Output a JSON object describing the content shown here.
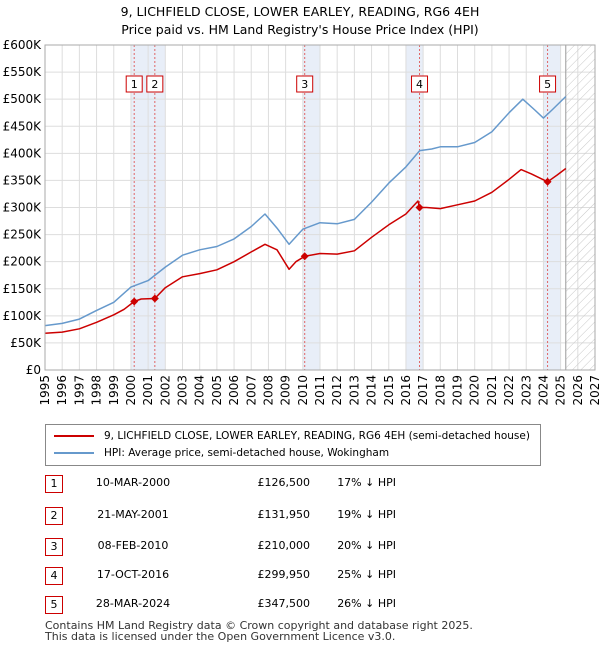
{
  "chart_data": {
    "type": "line",
    "title": "9, LICHFIELD CLOSE, LOWER EARLEY, READING, RG6 4EH",
    "subtitle": "Price paid vs. HM Land Registry's House Price Index (HPI)",
    "x_range": [
      1995,
      2027
    ],
    "ylim": [
      0,
      600000
    ],
    "y_ticks": [
      {
        "value": 0,
        "label": "£0"
      },
      {
        "value": 50000,
        "label": "£50K"
      },
      {
        "value": 100000,
        "label": "£100K"
      },
      {
        "value": 150000,
        "label": "£150K"
      },
      {
        "value": 200000,
        "label": "£200K"
      },
      {
        "value": 250000,
        "label": "£250K"
      },
      {
        "value": 300000,
        "label": "£300K"
      },
      {
        "value": 350000,
        "label": "£350K"
      },
      {
        "value": 400000,
        "label": "£400K"
      },
      {
        "value": 450000,
        "label": "£450K"
      },
      {
        "value": 500000,
        "label": "£500K"
      },
      {
        "value": 550000,
        "label": "£550K"
      },
      {
        "value": 600000,
        "label": "£600K"
      }
    ],
    "x_ticks": [
      "1995",
      "1996",
      "1997",
      "1998",
      "1999",
      "2000",
      "2001",
      "2002",
      "2003",
      "2004",
      "2005",
      "2006",
      "2007",
      "2008",
      "2009",
      "2010",
      "2011",
      "2012",
      "2013",
      "2014",
      "2015",
      "2016",
      "2017",
      "2018",
      "2019",
      "2020",
      "2021",
      "2022",
      "2023",
      "2024",
      "2025",
      "2026",
      "2027"
    ],
    "forecast_start": 2025.3,
    "series": [
      {
        "name": "9, LICHFIELD CLOSE, LOWER EARLEY, READING, RG6 4EH (semi-detached house)",
        "color": "#cc0000",
        "x": [
          1995,
          1996,
          1997,
          1998,
          1999,
          1999.6,
          2000.19,
          2000.6,
          2001.39,
          2002,
          2003,
          2004,
          2005,
          2006,
          2007,
          2007.8,
          2008.5,
          2009.2,
          2009.6,
          2010.11,
          2011,
          2012,
          2013,
          2014,
          2015,
          2016,
          2016.7,
          2016.79,
          2017.2,
          2018,
          2019,
          2020,
          2021,
          2022,
          2022.7,
          2023.3,
          2024.24,
          2024.8,
          2025.3
        ],
        "values": [
          68000,
          70000,
          76000,
          88000,
          102000,
          112000,
          126500,
          131000,
          131950,
          152000,
          172000,
          178000,
          185000,
          200000,
          218000,
          232000,
          222000,
          186000,
          200000,
          210000,
          215000,
          214000,
          220000,
          245000,
          268000,
          288000,
          312000,
          299950,
          300000,
          298000,
          305000,
          312000,
          328000,
          352000,
          370000,
          362000,
          347500,
          360000,
          372000
        ]
      },
      {
        "name": "HPI: Average price, semi-detached house, Wokingham",
        "color": "#6699cc",
        "x": [
          1995,
          1996,
          1997,
          1998,
          1999,
          2000,
          2001,
          2002,
          2003,
          2004,
          2005,
          2006,
          2007,
          2007.8,
          2008.5,
          2009.2,
          2010,
          2011,
          2012,
          2013,
          2014,
          2015,
          2016,
          2016.8,
          2017.5,
          2018,
          2019,
          2020,
          2021,
          2022,
          2022.8,
          2023.5,
          2024,
          2024.5,
          2025.3
        ],
        "values": [
          82000,
          86000,
          94000,
          110000,
          125000,
          153000,
          165000,
          190000,
          212000,
          222000,
          228000,
          242000,
          265000,
          288000,
          262000,
          232000,
          260000,
          272000,
          270000,
          278000,
          310000,
          345000,
          375000,
          405000,
          408000,
          412000,
          412000,
          420000,
          440000,
          475000,
          500000,
          480000,
          465000,
          480000,
          505000
        ]
      }
    ],
    "sales": [
      {
        "n": "1",
        "x": 2000.19,
        "value": 126500
      },
      {
        "n": "2",
        "x": 2001.39,
        "value": 131950
      },
      {
        "n": "3",
        "x": 2010.11,
        "value": 210000
      },
      {
        "n": "4",
        "x": 2016.79,
        "value": 299950
      },
      {
        "n": "5",
        "x": 2024.24,
        "value": 347500
      }
    ]
  },
  "legend": {
    "property": "9, LICHFIELD CLOSE, LOWER EARLEY, READING, RG6 4EH (semi-detached house)",
    "hpi": "HPI: Average price, semi-detached house, Wokingham"
  },
  "sales_table": [
    {
      "n": "1",
      "date": "10-MAR-2000",
      "price": "£126,500",
      "hpi": "17% ↓ HPI"
    },
    {
      "n": "2",
      "date": "21-MAY-2001",
      "price": "£131,950",
      "hpi": "19% ↓ HPI"
    },
    {
      "n": "3",
      "date": "08-FEB-2010",
      "price": "£210,000",
      "hpi": "20% ↓ HPI"
    },
    {
      "n": "4",
      "date": "17-OCT-2016",
      "price": "£299,950",
      "hpi": "25% ↓ HPI"
    },
    {
      "n": "5",
      "date": "28-MAR-2024",
      "price": "£347,500",
      "hpi": "26% ↓ HPI"
    }
  ],
  "footer": {
    "line1": "Contains HM Land Registry data © Crown copyright and database right 2025.",
    "line2": "This data is licensed under the Open Government Licence v3.0."
  },
  "colors": {
    "property": "#cc0000",
    "hpi": "#6699cc",
    "sale_band": "#e8eef8",
    "marker_border": "#cc0000"
  }
}
